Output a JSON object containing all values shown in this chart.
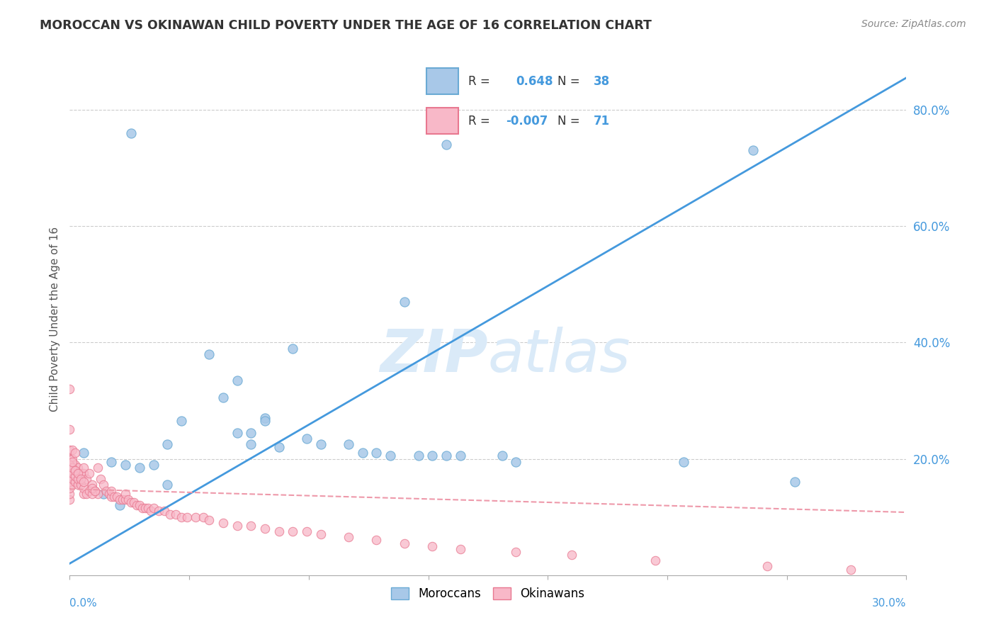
{
  "title": "MOROCCAN VS OKINAWAN CHILD POVERTY UNDER THE AGE OF 16 CORRELATION CHART",
  "source": "Source: ZipAtlas.com",
  "ylabel": "Child Poverty Under the Age of 16",
  "xlim": [
    0.0,
    0.3
  ],
  "ylim": [
    0.0,
    0.88
  ],
  "yticks": [
    0.2,
    0.4,
    0.6,
    0.8
  ],
  "ytick_labels": [
    "20.0%",
    "40.0%",
    "60.0%",
    "80.0%"
  ],
  "blue_color": "#a8c8e8",
  "blue_edge_color": "#6aaad4",
  "pink_color": "#f8b8c8",
  "pink_edge_color": "#e87890",
  "blue_line_color": "#4499dd",
  "pink_line_color": "#ee99aa",
  "axis_label_color": "#4499dd",
  "watermark_color": "#daeaf8",
  "background_color": "#ffffff",
  "grid_color": "#cccccc",
  "blue_line_x": [
    0.0,
    0.3
  ],
  "blue_line_y": [
    0.02,
    0.855
  ],
  "pink_line_x": [
    0.0,
    0.3
  ],
  "pink_line_y": [
    0.148,
    0.108
  ],
  "moroccans_x": [
    0.005,
    0.022,
    0.135,
    0.245,
    0.12,
    0.08,
    0.055,
    0.06,
    0.04,
    0.07,
    0.07,
    0.065,
    0.06,
    0.085,
    0.09,
    0.1,
    0.105,
    0.11,
    0.115,
    0.125,
    0.13,
    0.135,
    0.14,
    0.015,
    0.02,
    0.025,
    0.03,
    0.035,
    0.012,
    0.018,
    0.26,
    0.22,
    0.155,
    0.16,
    0.065,
    0.075,
    0.035,
    0.05
  ],
  "moroccans_y": [
    0.21,
    0.76,
    0.74,
    0.73,
    0.47,
    0.39,
    0.305,
    0.335,
    0.265,
    0.27,
    0.265,
    0.245,
    0.245,
    0.235,
    0.225,
    0.225,
    0.21,
    0.21,
    0.205,
    0.205,
    0.205,
    0.205,
    0.205,
    0.195,
    0.19,
    0.185,
    0.19,
    0.155,
    0.14,
    0.12,
    0.16,
    0.195,
    0.205,
    0.195,
    0.225,
    0.22,
    0.225,
    0.38
  ],
  "okinawans_x": [
    0.0,
    0.0,
    0.0,
    0.0,
    0.0,
    0.001,
    0.001,
    0.001,
    0.002,
    0.002,
    0.003,
    0.003,
    0.004,
    0.005,
    0.005,
    0.006,
    0.007,
    0.008,
    0.009,
    0.01,
    0.01,
    0.011,
    0.012,
    0.013,
    0.014,
    0.015,
    0.015,
    0.016,
    0.017,
    0.018,
    0.019,
    0.02,
    0.02,
    0.021,
    0.022,
    0.023,
    0.024,
    0.025,
    0.026,
    0.027,
    0.028,
    0.029,
    0.03,
    0.032,
    0.034,
    0.036,
    0.038,
    0.04,
    0.042,
    0.045,
    0.048,
    0.05,
    0.055,
    0.06,
    0.065,
    0.07,
    0.075,
    0.08,
    0.085,
    0.09,
    0.1,
    0.11,
    0.12,
    0.13,
    0.14,
    0.16,
    0.18,
    0.21,
    0.25,
    0.28
  ],
  "okinawans_y": [
    0.19,
    0.2,
    0.215,
    0.25,
    0.32,
    0.18,
    0.2,
    0.215,
    0.19,
    0.21,
    0.175,
    0.185,
    0.175,
    0.175,
    0.185,
    0.165,
    0.175,
    0.155,
    0.145,
    0.14,
    0.185,
    0.165,
    0.155,
    0.145,
    0.14,
    0.135,
    0.145,
    0.135,
    0.135,
    0.13,
    0.13,
    0.13,
    0.14,
    0.13,
    0.125,
    0.125,
    0.12,
    0.12,
    0.115,
    0.115,
    0.115,
    0.11,
    0.115,
    0.11,
    0.11,
    0.105,
    0.105,
    0.1,
    0.1,
    0.1,
    0.1,
    0.095,
    0.09,
    0.085,
    0.085,
    0.08,
    0.075,
    0.075,
    0.075,
    0.07,
    0.065,
    0.06,
    0.055,
    0.05,
    0.045,
    0.04,
    0.035,
    0.025,
    0.015,
    0.01
  ],
  "okinawans_cluster_x": [
    0.0,
    0.0,
    0.0,
    0.0,
    0.0,
    0.0,
    0.0,
    0.001,
    0.001,
    0.001,
    0.001,
    0.001,
    0.002,
    0.002,
    0.002,
    0.003,
    0.003,
    0.003,
    0.004,
    0.004,
    0.005,
    0.005,
    0.005,
    0.006,
    0.007,
    0.008,
    0.008,
    0.009
  ],
  "okinawans_cluster_y": [
    0.13,
    0.14,
    0.15,
    0.16,
    0.17,
    0.18,
    0.19,
    0.155,
    0.165,
    0.175,
    0.185,
    0.195,
    0.16,
    0.17,
    0.18,
    0.155,
    0.165,
    0.175,
    0.155,
    0.165,
    0.14,
    0.15,
    0.16,
    0.14,
    0.145,
    0.14,
    0.15,
    0.145
  ]
}
